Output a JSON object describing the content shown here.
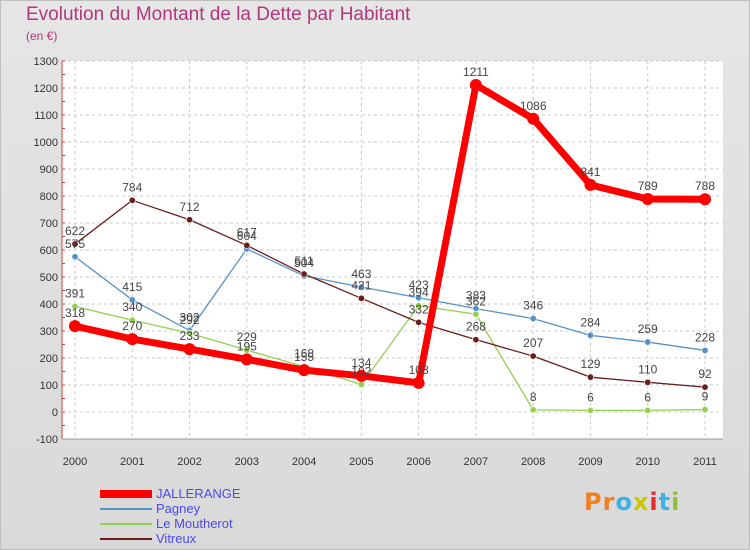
{
  "header": {
    "title": "Evolution du Montant de la Dette par Habitant",
    "subtitle": "(en €)"
  },
  "brand": {
    "logo_parts": [
      "Pr",
      "o",
      "x",
      "i",
      "t",
      "i"
    ],
    "logo_colors": [
      "#f27e1e",
      "#3ab3e6",
      "#c8c800",
      "#e42d2d",
      "#3ab3e6",
      "#8fbf3e"
    ]
  },
  "chart_data": {
    "type": "line",
    "x": [
      "2000",
      "2001",
      "2002",
      "2003",
      "2004",
      "2005",
      "2006",
      "2007",
      "2008",
      "2009",
      "2010",
      "2011"
    ],
    "ylim": [
      -100,
      1300
    ],
    "yticks": [
      -100,
      0,
      100,
      200,
      300,
      400,
      500,
      600,
      700,
      800,
      900,
      1000,
      1100,
      1200,
      1300
    ],
    "grid": true,
    "legend_position": "bottom-left",
    "series": [
      {
        "name": "JALLERANGE",
        "color": "#ff0000",
        "values": [
          318,
          270,
          233,
          195,
          155,
          134,
          108,
          1211,
          1086,
          841,
          789,
          788
        ]
      },
      {
        "name": "Pagney",
        "color": "#5592c8",
        "values": [
          575,
          415,
          302,
          604,
          504,
          463,
          423,
          383,
          346,
          284,
          259,
          228
        ]
      },
      {
        "name": "Le Moutherot",
        "color": "#92d050",
        "values": [
          391,
          340,
          292,
          229,
          168,
          102,
          394,
          362,
          8,
          6,
          6,
          9
        ]
      },
      {
        "name": "Vitreux",
        "color": "#6b1c1c",
        "values": [
          622,
          784,
          712,
          617,
          511,
          421,
          332,
          268,
          207,
          129,
          110,
          92
        ]
      }
    ]
  }
}
